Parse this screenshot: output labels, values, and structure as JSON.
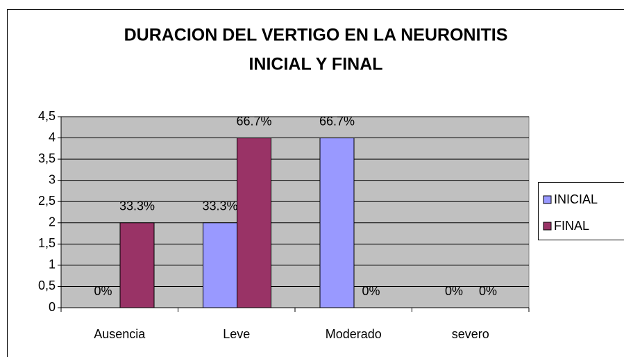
{
  "chart_data": {
    "type": "bar",
    "title": [
      "DURACION DEL VERTIGO EN LA NEURONITIS",
      "INICIAL Y FINAL"
    ],
    "categories": [
      "Ausencia",
      "Leve",
      "Moderado",
      "severo"
    ],
    "series": [
      {
        "name": "INICIAL",
        "color": "#9999ff",
        "values": [
          0,
          2,
          4,
          0
        ],
        "value_labels": [
          "0%",
          "33.3%",
          "66.7%",
          "0%"
        ]
      },
      {
        "name": "FINAL",
        "color": "#993366",
        "values": [
          2,
          4,
          0,
          0
        ],
        "value_labels": [
          "33.3%",
          "66.7%",
          "0%",
          "0%"
        ]
      }
    ],
    "ylim": [
      0,
      4.5
    ],
    "yticks": [
      0,
      {
        "value": 0.5,
        "label": "0,5"
      },
      1,
      {
        "value": 1.5,
        "label": "1,5"
      },
      2,
      {
        "value": 2.5,
        "label": "2,5"
      },
      3,
      {
        "value": 3.5,
        "label": "3,5"
      },
      4,
      {
        "value": 4.5,
        "label": "4,5"
      }
    ],
    "grid": true,
    "legend": "right",
    "plot_background": "#c0c0c0"
  }
}
